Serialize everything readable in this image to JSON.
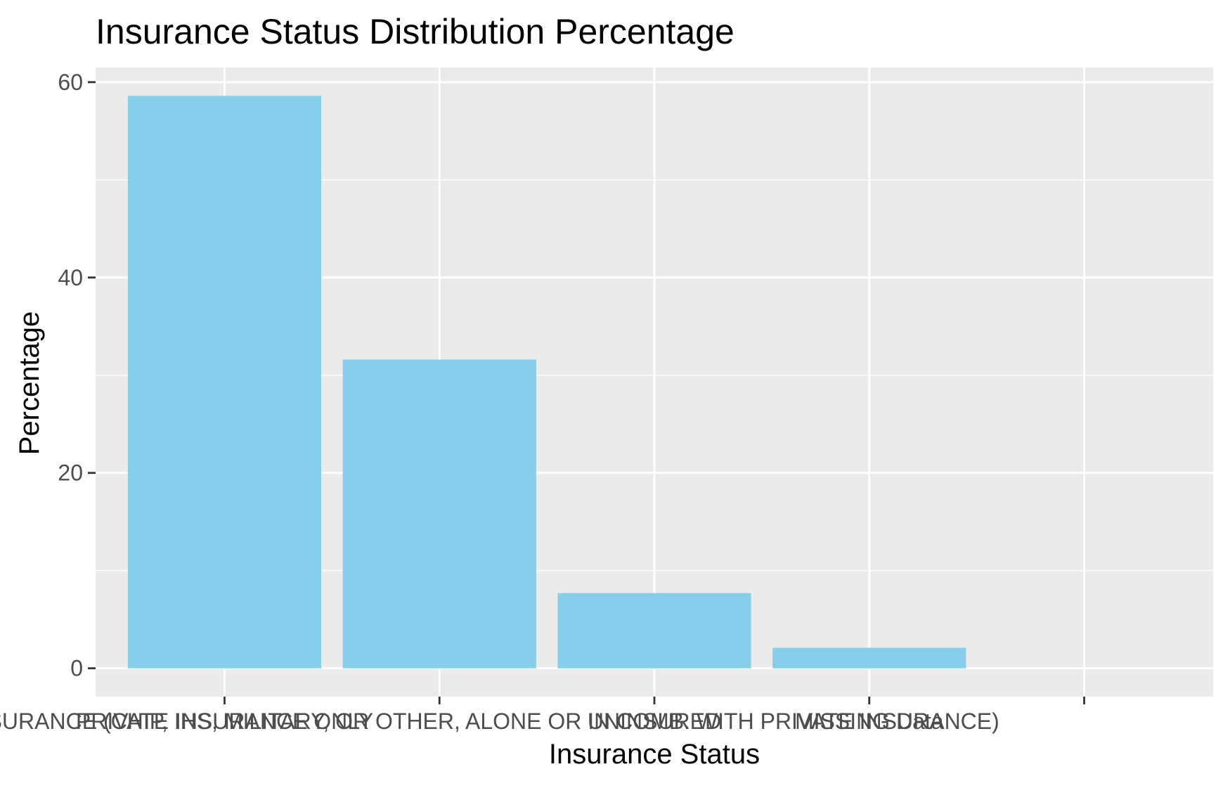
{
  "chart_data": {
    "type": "bar",
    "title": "Insurance Status Distribution Percentage",
    "xlabel": "Insurance Status",
    "ylabel": "Percentage",
    "categories": [
      "PRIVATE INSURANCE ONLY",
      "OTHER INSURANCE (CHIP, IHS, MILITARY, OR OTHER, ALONE OR IN COMB. WITH PRIVATE INSURANCE)",
      "UNINSURED",
      "MISSING Data",
      ""
    ],
    "values": [
      58.6,
      31.6,
      7.7,
      2.1,
      0
    ],
    "ylim": [
      -2.9,
      61.5
    ],
    "yticks": [
      0,
      20,
      40,
      60
    ],
    "grid": true,
    "legend": "none",
    "colors": {
      "bar": "#87CEEB",
      "panel": "#EBEBEB",
      "grid": "#FFFFFF",
      "tick": "#333333"
    }
  }
}
